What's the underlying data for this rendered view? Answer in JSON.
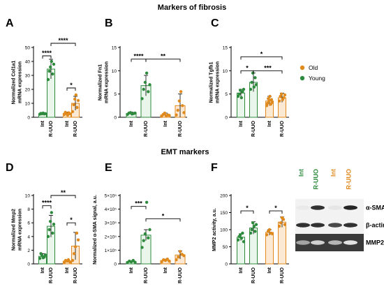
{
  "section_titles": {
    "fibrosis": "Markers of fibrosis",
    "emt": "EMT markers"
  },
  "colors": {
    "young": "#2e8b3e",
    "old": "#e08a1e",
    "young_fill": "#eaf6ec",
    "old_fill": "#fbe9d4"
  },
  "legend": {
    "old": "Old",
    "young": "Young"
  },
  "groups": [
    "Int",
    "R-UUO",
    "Int",
    "R-UUO"
  ],
  "chart_data": [
    {
      "panel": "A",
      "type": "bar",
      "ylabel": [
        "Normalized Col1a1",
        "mRNA expression"
      ],
      "ylim": [
        0,
        50
      ],
      "yticks": [
        "0",
        "10",
        "20",
        "30",
        "40",
        "50"
      ],
      "series": [
        {
          "name": "Young",
          "means": [
            2.5,
            34.5
          ],
          "errors": [
            0.8,
            7
          ],
          "points": [
            [
              2.2,
              2.8,
              2.5,
              3.0,
              2.4,
              2.6
            ],
            [
              27,
              33,
              36,
              40,
              31,
              38
            ]
          ]
        },
        {
          "name": "Old",
          "means": [
            2.8,
            10
          ],
          "errors": [
            1,
            5
          ],
          "points": [
            [
              2.0,
              3.5,
              2.8,
              1.5,
              3.2,
              2.6
            ],
            [
              4,
              9,
              13,
              16,
              7,
              12
            ]
          ]
        }
      ],
      "sig": [
        {
          "a": 0,
          "b": 1,
          "label": "****",
          "y": 44
        },
        {
          "a": 2,
          "b": 3,
          "label": "*",
          "y": 21
        },
        {
          "a": 1,
          "b": 3,
          "label": "****",
          "y": 53
        }
      ]
    },
    {
      "panel": "B",
      "type": "bar",
      "ylabel": [
        "Normalized Fn1",
        "mRNA expression"
      ],
      "ylim": [
        0,
        15
      ],
      "yticks": [
        "0",
        "5",
        "10",
        "15"
      ],
      "series": [
        {
          "name": "Young",
          "means": [
            0.8,
            6.8
          ],
          "errors": [
            0.3,
            2.2
          ],
          "points": [
            [
              0.6,
              0.9,
              1.0,
              0.7,
              0.8,
              0.9
            ],
            [
              4,
              6,
              7.5,
              9.5,
              5.5,
              7
            ]
          ]
        },
        {
          "name": "Old",
          "means": [
            0.5,
            2.5
          ],
          "errors": [
            0.4,
            2.5
          ],
          "points": [
            [
              0.2,
              0.6,
              0.9,
              0.3,
              0.5,
              0.4
            ],
            [
              0.5,
              1.5,
              3.5,
              5.5,
              2.5,
              1
            ]
          ]
        }
      ],
      "sig": [
        {
          "a": 0,
          "b": 1,
          "label": "****",
          "y": 12.5
        },
        {
          "a": 1,
          "b": 3,
          "label": "**",
          "y": 12.5
        }
      ]
    },
    {
      "panel": "C",
      "type": "bar",
      "ylabel": [
        "Normalized Tgfb1",
        "mRNA expression"
      ],
      "ylim": [
        0,
        15
      ],
      "yticks": [
        "0",
        "5",
        "10",
        "15"
      ],
      "series": [
        {
          "name": "Young",
          "means": [
            5.2,
            7.5
          ],
          "errors": [
            0.8,
            2
          ],
          "points": [
            [
              4.5,
              5.0,
              5.8,
              4.2,
              5.5,
              6.0
            ],
            [
              6.0,
              7.5,
              9.5,
              6.5,
              8.5,
              7.0
            ]
          ]
        },
        {
          "name": "Old",
          "means": [
            3.5,
            4.2
          ],
          "errors": [
            1,
            1
          ],
          "points": [
            [
              2.5,
              3.0,
              4.0,
              3.5,
              4.5,
              2.8,
              3.8,
              3.2
            ],
            [
              3.5,
              4.5,
              5.0,
              3.8,
              4.2,
              4.8
            ]
          ]
        }
      ],
      "sig": [
        {
          "a": 0,
          "b": 1,
          "label": "*",
          "y": 10
        },
        {
          "a": 1,
          "b": 3,
          "label": "***",
          "y": 10
        },
        {
          "a": 0,
          "b": 3,
          "label": "*",
          "y": 13
        }
      ]
    },
    {
      "panel": "D",
      "type": "bar",
      "ylabel": [
        "Normalized Mmp2",
        "mRNA expression"
      ],
      "ylim": [
        0,
        10
      ],
      "yticks": [
        "0",
        "2",
        "4",
        "6",
        "8",
        "10"
      ],
      "series": [
        {
          "name": "Young",
          "means": [
            1.1,
            5.5
          ],
          "errors": [
            0.4,
            1.6
          ],
          "points": [
            [
              0.8,
              1.5,
              1.2,
              0.9,
              1.0,
              1.3
            ],
            [
              4.0,
              5.0,
              6.2,
              7.5,
              4.5,
              5.8
            ]
          ]
        },
        {
          "name": "Old",
          "means": [
            0.4,
            2.6
          ],
          "errors": [
            0.2,
            2
          ],
          "points": [
            [
              0.2,
              0.5,
              0.4,
              0.6,
              0.3
            ],
            [
              0.5,
              1.5,
              2.5,
              4.5,
              3.5
            ]
          ]
        }
      ],
      "sig": [
        {
          "a": 0,
          "b": 1,
          "label": "****",
          "y": 8.5
        },
        {
          "a": 2,
          "b": 3,
          "label": "*",
          "y": 6
        },
        {
          "a": 1,
          "b": 3,
          "label": "**",
          "y": 10
        }
      ]
    },
    {
      "panel": "E",
      "type": "bar",
      "ylabel": [
        "Normalized α-SMA signal, a.u."
      ],
      "ylim": [
        0,
        500000
      ],
      "yticks": [
        "0",
        "1×10⁵",
        "2×10⁵",
        "3×10⁵",
        "4×10⁵",
        "5×10⁵"
      ],
      "series": [
        {
          "name": "Young",
          "means": [
            15000,
            210000
          ],
          "errors": [
            8000,
            40000
          ],
          "points": [
            [
              10000,
              20000,
              15000,
              25000,
              12000
            ],
            [
              120000,
              170000,
              220000,
              450000,
              190000,
              250000
            ]
          ]
        },
        {
          "name": "Old",
          "means": [
            25000,
            65000
          ],
          "errors": [
            10000,
            30000
          ],
          "points": [
            [
              15000,
              30000,
              25000,
              35000,
              20000
            ],
            [
              30000,
              50000,
              90000,
              70000,
              60000
            ]
          ]
        }
      ],
      "sig": [
        {
          "a": 0,
          "b": 1,
          "label": "***",
          "y": 420000
        },
        {
          "a": 1,
          "b": 3,
          "label": "*",
          "y": 330000
        }
      ]
    },
    {
      "panel": "F",
      "type": "bar",
      "ylabel": [
        "MMP2 activity, a.u."
      ],
      "ylim": [
        0,
        200
      ],
      "yticks": [
        "0",
        "50",
        "100",
        "150",
        "200"
      ],
      "series": [
        {
          "name": "Young",
          "means": [
            78,
            105
          ],
          "errors": [
            10,
            18
          ],
          "points": [
            [
              70,
              80,
              85,
              75,
              90,
              65
            ],
            [
              90,
              100,
              120,
              110,
              95,
              115
            ]
          ]
        },
        {
          "name": "Old",
          "means": [
            92,
            122
          ],
          "errors": [
            8,
            15
          ],
          "points": [
            [
              85,
              95,
              100,
              90,
              88
            ],
            [
              110,
              120,
              135,
              130,
              115
            ]
          ]
        }
      ],
      "sig": [
        {
          "a": 0,
          "b": 1,
          "label": "*",
          "y": 155
        },
        {
          "a": 2,
          "b": 3,
          "label": "*",
          "y": 155
        }
      ]
    }
  ],
  "blot": {
    "lane_labels": [
      "Int",
      "R-UUO",
      "Int",
      "R-UUO"
    ],
    "bands": [
      "α-SMA",
      "β-actin",
      "MMP2"
    ],
    "intensity": {
      "α-SMA": [
        0.03,
        0.85,
        0.05,
        0.9
      ],
      "β-actin": [
        0.85,
        0.85,
        0.75,
        0.85
      ],
      "MMP2": [
        0.6,
        0.85,
        0.7,
        0.95
      ]
    }
  }
}
